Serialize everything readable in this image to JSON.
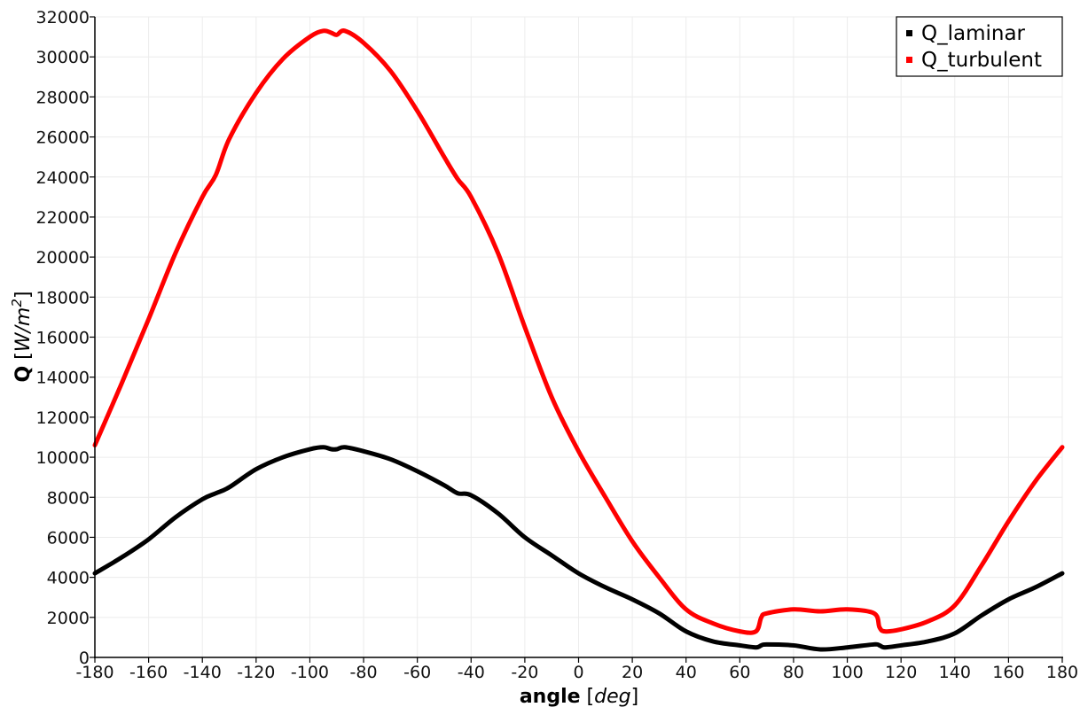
{
  "chart_data": {
    "type": "line",
    "title": "",
    "xlabel": "angle",
    "xlabel_unit": "deg",
    "ylabel": "Q",
    "ylabel_unit": "W/m",
    "ylabel_unit_sup": "2",
    "xlim": [
      -180,
      180
    ],
    "ylim": [
      0,
      32000
    ],
    "grid": true,
    "legend_position": "top-right",
    "x_ticks": [
      -180,
      -160,
      -140,
      -120,
      -100,
      -80,
      -60,
      -40,
      -20,
      0,
      20,
      40,
      60,
      80,
      100,
      120,
      140,
      160,
      180
    ],
    "y_ticks": [
      0,
      2000,
      4000,
      6000,
      8000,
      10000,
      12000,
      14000,
      16000,
      18000,
      20000,
      22000,
      24000,
      26000,
      28000,
      30000,
      32000
    ],
    "x": [
      -180,
      -170,
      -160,
      -150,
      -140,
      -135,
      -130,
      -120,
      -110,
      -100,
      -95,
      -92,
      -90,
      -87,
      -80,
      -70,
      -60,
      -50,
      -45,
      -40,
      -30,
      -20,
      -10,
      0,
      10,
      20,
      30,
      40,
      50,
      60,
      66,
      68,
      70,
      80,
      90,
      100,
      110,
      112,
      114,
      120,
      130,
      140,
      150,
      160,
      170,
      180
    ],
    "series": [
      {
        "name": "Q_laminar",
        "color": "#000000",
        "values": [
          4200,
          5000,
          5900,
          7000,
          7900,
          8200,
          8500,
          9400,
          10000,
          10400,
          10500,
          10400,
          10400,
          10500,
          10300,
          9900,
          9300,
          8600,
          8200,
          8100,
          7200,
          6000,
          5100,
          4200,
          3500,
          2900,
          2200,
          1300,
          800,
          600,
          500,
          600,
          650,
          600,
          400,
          500,
          650,
          600,
          500,
          600,
          800,
          1200,
          2100,
          2900,
          3500,
          4200
        ]
      },
      {
        "name": "Q_turbulent",
        "color": "#ff0000",
        "values": [
          10600,
          13700,
          16900,
          20200,
          23000,
          24100,
          25900,
          28200,
          29900,
          31000,
          31300,
          31200,
          31100,
          31300,
          30700,
          29300,
          27300,
          25000,
          23900,
          23000,
          20200,
          16500,
          13000,
          10300,
          8000,
          5800,
          4000,
          2400,
          1700,
          1300,
          1300,
          2000,
          2200,
          2400,
          2300,
          2400,
          2200,
          1500,
          1300,
          1400,
          1800,
          2600,
          4600,
          6800,
          8800,
          10500
        ]
      }
    ]
  },
  "legend": {
    "items": [
      {
        "label": "Q_laminar",
        "color": "#000000"
      },
      {
        "label": "Q_turbulent",
        "color": "#ff0000"
      }
    ]
  }
}
